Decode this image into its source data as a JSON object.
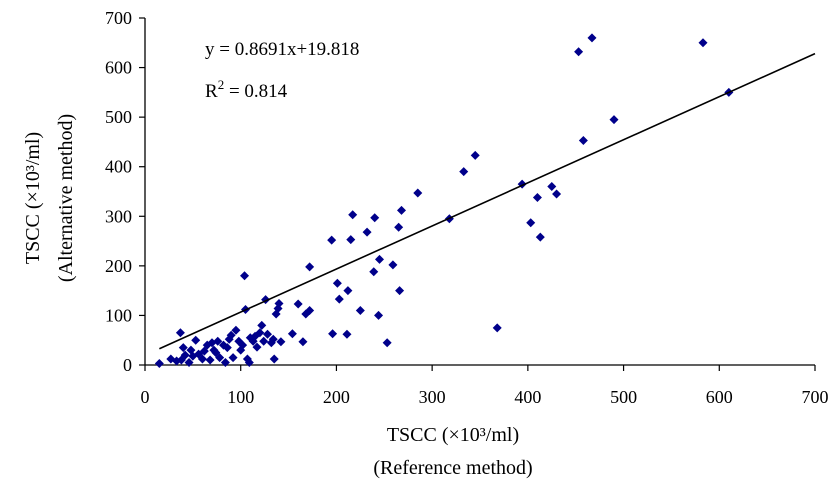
{
  "chart_data": {
    "type": "scatter",
    "title": "",
    "xlabel": "TSCC (×10³/ml)",
    "xlabel_sub": "(Reference method)",
    "ylabel": "TSCC (×10³/ml)",
    "ylabel_sub": "(Alternative method)",
    "xlim": [
      0,
      700
    ],
    "ylim": [
      0,
      700
    ],
    "xticks": [
      0,
      100,
      200,
      300,
      400,
      500,
      600,
      700
    ],
    "yticks": [
      0,
      100,
      200,
      300,
      400,
      500,
      600,
      700
    ],
    "grid": false,
    "legend": "none",
    "marker_color": "#00008B",
    "trendline": {
      "slope": 0.8691,
      "intercept": 19.818,
      "x_range": [
        15,
        700
      ]
    },
    "equation_text": "y = 0.8691x+19.818",
    "r2_label": "R",
    "r2_sup": "2",
    "r2_value_text": " = 0.814",
    "points": [
      [
        15,
        3
      ],
      [
        27,
        12
      ],
      [
        33,
        8
      ],
      [
        37,
        65
      ],
      [
        40,
        35
      ],
      [
        38,
        10
      ],
      [
        42,
        20
      ],
      [
        46,
        5
      ],
      [
        48,
        30
      ],
      [
        50,
        18
      ],
      [
        53,
        50
      ],
      [
        56,
        22
      ],
      [
        60,
        12
      ],
      [
        62,
        28
      ],
      [
        65,
        40
      ],
      [
        68,
        10
      ],
      [
        70,
        45
      ],
      [
        72,
        30
      ],
      [
        74,
        25
      ],
      [
        76,
        48
      ],
      [
        78,
        15
      ],
      [
        82,
        40
      ],
      [
        84,
        5
      ],
      [
        86,
        35
      ],
      [
        88,
        52
      ],
      [
        90,
        60
      ],
      [
        92,
        15
      ],
      [
        95,
        70
      ],
      [
        98,
        48
      ],
      [
        100,
        30
      ],
      [
        102,
        40
      ],
      [
        104,
        180
      ],
      [
        105,
        112
      ],
      [
        107,
        12
      ],
      [
        109,
        5
      ],
      [
        110,
        55
      ],
      [
        113,
        48
      ],
      [
        115,
        58
      ],
      [
        117,
        36
      ],
      [
        120,
        65
      ],
      [
        122,
        80
      ],
      [
        124,
        48
      ],
      [
        126,
        132
      ],
      [
        128,
        62
      ],
      [
        132,
        45
      ],
      [
        134,
        52
      ],
      [
        135,
        12
      ],
      [
        137,
        103
      ],
      [
        139,
        114
      ],
      [
        140,
        124
      ],
      [
        142,
        47
      ],
      [
        154,
        63
      ],
      [
        160,
        123
      ],
      [
        165,
        47
      ],
      [
        168,
        103
      ],
      [
        172,
        198
      ],
      [
        172,
        110
      ],
      [
        195,
        252
      ],
      [
        196,
        63
      ],
      [
        201,
        165
      ],
      [
        203,
        133
      ],
      [
        211,
        62
      ],
      [
        212,
        150
      ],
      [
        215,
        253
      ],
      [
        217,
        303
      ],
      [
        225,
        110
      ],
      [
        232,
        268
      ],
      [
        239,
        188
      ],
      [
        240,
        297
      ],
      [
        244,
        100
      ],
      [
        245,
        213
      ],
      [
        253,
        45
      ],
      [
        259,
        202
      ],
      [
        265,
        278
      ],
      [
        266,
        150
      ],
      [
        268,
        312
      ],
      [
        285,
        347
      ],
      [
        318,
        295
      ],
      [
        333,
        390
      ],
      [
        345,
        423
      ],
      [
        368,
        75
      ],
      [
        394,
        365
      ],
      [
        403,
        287
      ],
      [
        410,
        338
      ],
      [
        413,
        258
      ],
      [
        425,
        360
      ],
      [
        430,
        345
      ],
      [
        453,
        632
      ],
      [
        458,
        453
      ],
      [
        467,
        660
      ],
      [
        490,
        495
      ],
      [
        583,
        650
      ],
      [
        610,
        550
      ]
    ]
  }
}
